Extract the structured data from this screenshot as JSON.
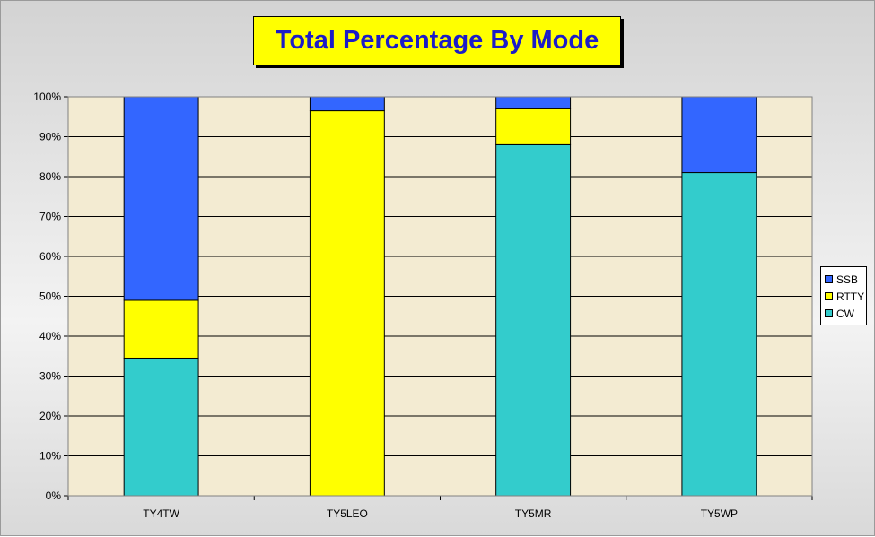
{
  "chart_data": {
    "type": "bar",
    "stacked": true,
    "title": "Total Percentage By Mode",
    "categories": [
      "TY4TW",
      "TY5LEO",
      "TY5MR",
      "TY5WP"
    ],
    "series": [
      {
        "name": "CW",
        "color": "#33cccc",
        "values": [
          34.5,
          0,
          88,
          81
        ]
      },
      {
        "name": "RTTY",
        "color": "#ffff00",
        "values": [
          14.5,
          96.5,
          9,
          0
        ]
      },
      {
        "name": "SSB",
        "color": "#3366ff",
        "values": [
          51,
          3.5,
          3,
          19
        ]
      }
    ],
    "ylim": [
      0,
      100
    ],
    "yticks": [
      "0%",
      "10%",
      "20%",
      "30%",
      "40%",
      "50%",
      "60%",
      "70%",
      "80%",
      "90%",
      "100%"
    ],
    "legend_order": [
      "SSB",
      "RTTY",
      "CW"
    ],
    "legend_position": "right",
    "grid": true,
    "plot_background": "#f3ebd2",
    "title_color": "#1c1cc8",
    "title_background": "#ffff00"
  }
}
